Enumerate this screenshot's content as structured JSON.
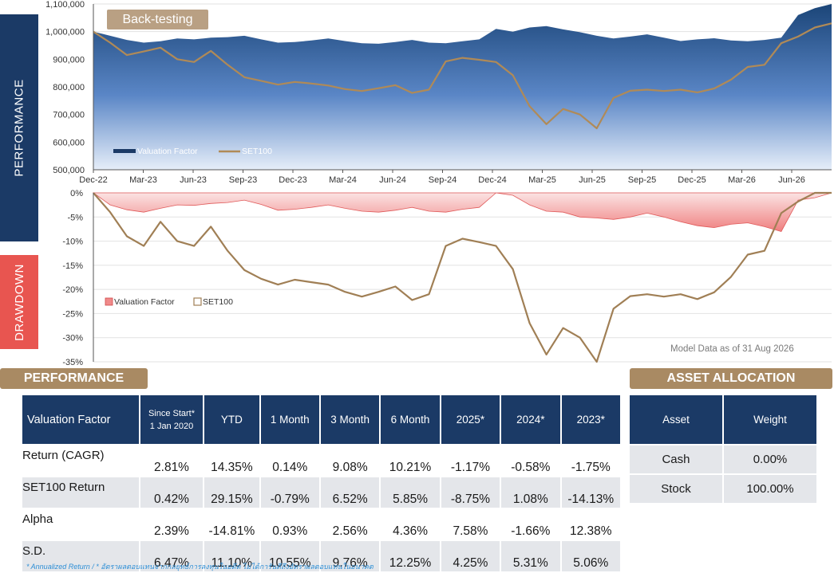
{
  "labels": {
    "performance_sidebar": "PERFORMANCE",
    "drawdown_sidebar": "DRAWDOWN",
    "backtest_badge": "Back-testing",
    "model_note": "Model Data as of 31 Aug 2026",
    "perf_header": "PERFORMANCE",
    "alloc_header": "ASSET ALLOCATION",
    "footnote": "* Annualized Return  /  * อัตราผลตอบแทนจากกลยุทธ์การลงทุนในอดีต ไม่ได้การันตีถึงอัตราผลตอบแทนในอนาคต"
  },
  "colors": {
    "navy": "#1b3a66",
    "brown_header": "#a98a63",
    "drawdown_sidebar": "#e85550",
    "set100_line": "#b08a57",
    "vf_area_top": "#1d4a7e",
    "vf_area_bottom": "#dfe9f7",
    "dd_area": "#f08a8a",
    "positive": "#1f9e3a",
    "negative": "#e0201c"
  },
  "chart_data": [
    {
      "type": "area",
      "title": "",
      "x_ticks": [
        "Dec-22",
        "Mar-23",
        "Jun-23",
        "Sep-23",
        "Dec-23",
        "Mar-24",
        "Jun-24",
        "Sep-24",
        "Dec-24",
        "Mar-25",
        "Jun-25",
        "Sep-25",
        "Dec-25",
        "Mar-26",
        "Jun-26"
      ],
      "y_ticks": [
        "1,100,000",
        "1,000,000",
        "900,000",
        "800,000",
        "700,000",
        "600,000",
        "500,000"
      ],
      "ylim": [
        500000,
        1100000
      ],
      "legend_position": "bottom-left",
      "series": [
        {
          "name": "Valuation Factor",
          "style": "area",
          "x": [
            0,
            1,
            2,
            3,
            4,
            5,
            6,
            7,
            8,
            9,
            10,
            11,
            12,
            13,
            14,
            15,
            16,
            17,
            18,
            19,
            20,
            21,
            22,
            23,
            24,
            25,
            26,
            27,
            28,
            29,
            30,
            31,
            32,
            33,
            34,
            35,
            36,
            37,
            38,
            39,
            40,
            41,
            42,
            43,
            44
          ],
          "values": [
            1000000,
            985000,
            970000,
            960000,
            965000,
            975000,
            972000,
            978000,
            980000,
            985000,
            972000,
            960000,
            962000,
            968000,
            975000,
            966000,
            958000,
            956000,
            962000,
            970000,
            960000,
            958000,
            965000,
            972000,
            1010000,
            1000000,
            1015000,
            1020000,
            1008000,
            998000,
            985000,
            975000,
            982000,
            990000,
            978000,
            966000,
            972000,
            976000,
            968000,
            965000,
            970000,
            978000,
            1060000,
            1085000,
            1100000
          ]
        },
        {
          "name": "SET100",
          "style": "line",
          "x": [
            0,
            1,
            2,
            3,
            4,
            5,
            6,
            7,
            8,
            9,
            10,
            11,
            12,
            13,
            14,
            15,
            16,
            17,
            18,
            19,
            20,
            21,
            22,
            23,
            24,
            25,
            26,
            27,
            28,
            29,
            30,
            31,
            32,
            33,
            34,
            35,
            36,
            37,
            38,
            39,
            40,
            41,
            42,
            43,
            44
          ],
          "values": [
            1000000,
            960000,
            915000,
            928000,
            942000,
            900000,
            890000,
            930000,
            880000,
            835000,
            822000,
            808000,
            818000,
            812000,
            805000,
            792000,
            785000,
            795000,
            806000,
            778000,
            790000,
            892000,
            905000,
            898000,
            890000,
            842000,
            730000,
            665000,
            720000,
            700000,
            650000,
            760000,
            786000,
            790000,
            785000,
            790000,
            780000,
            794000,
            826000,
            872000,
            880000,
            958000,
            982000,
            1015000,
            1030000
          ]
        }
      ]
    },
    {
      "type": "area",
      "title": "",
      "y_ticks": [
        "0%",
        "-5%",
        "-10%",
        "-15%",
        "-20%",
        "-25%",
        "-30%",
        "-35%"
      ],
      "ylim": [
        -35,
        0
      ],
      "legend_position": "bottom-left",
      "series": [
        {
          "name": "Valuation Factor",
          "style": "area",
          "x": [
            0,
            1,
            2,
            3,
            4,
            5,
            6,
            7,
            8,
            9,
            10,
            11,
            12,
            13,
            14,
            15,
            16,
            17,
            18,
            19,
            20,
            21,
            22,
            23,
            24,
            25,
            26,
            27,
            28,
            29,
            30,
            31,
            32,
            33,
            34,
            35,
            36,
            37,
            38,
            39,
            40,
            41,
            42,
            43,
            44
          ],
          "values": [
            0,
            -2.5,
            -3.5,
            -4.0,
            -3.2,
            -2.5,
            -2.6,
            -2.2,
            -2.0,
            -1.5,
            -2.4,
            -3.6,
            -3.4,
            -3.0,
            -2.5,
            -3.2,
            -3.8,
            -4.0,
            -3.6,
            -3.0,
            -3.8,
            -4.0,
            -3.4,
            -3.0,
            0,
            -0.5,
            -2.5,
            -3.8,
            -4.0,
            -5.0,
            -5.2,
            -5.5,
            -5.0,
            -4.2,
            -5.0,
            -6.0,
            -6.8,
            -7.2,
            -6.5,
            -6.2,
            -7.0,
            -8.0,
            -1.5,
            -1.0,
            0
          ]
        },
        {
          "name": "SET100",
          "style": "line",
          "x": [
            0,
            1,
            2,
            3,
            4,
            5,
            6,
            7,
            8,
            9,
            10,
            11,
            12,
            13,
            14,
            15,
            16,
            17,
            18,
            19,
            20,
            21,
            22,
            23,
            24,
            25,
            26,
            27,
            28,
            29,
            30,
            31,
            32,
            33,
            34,
            35,
            36,
            37,
            38,
            39,
            40,
            41,
            42,
            43,
            44
          ],
          "values": [
            0,
            -4,
            -9,
            -11,
            -6,
            -10,
            -11,
            -7,
            -12,
            -16,
            -17.8,
            -19,
            -18,
            -18.5,
            -19,
            -20.5,
            -21.5,
            -20.5,
            -19.4,
            -22.2,
            -21,
            -11,
            -9.5,
            -10.2,
            -11,
            -15.8,
            -27,
            -33.5,
            -28,
            -30,
            -35,
            -24,
            -21.4,
            -21,
            -21.5,
            -21,
            -22,
            -20.6,
            -17.4,
            -12.8,
            -12,
            -4.2,
            -1.8,
            0,
            0
          ]
        }
      ]
    }
  ],
  "performance_table": {
    "columns": [
      "Valuation Factor",
      "Since Start*",
      "1 Jan 2020",
      "YTD",
      "1 Month",
      "3 Month",
      "6 Month",
      "2025*",
      "2024*",
      "2023*"
    ],
    "rows": [
      {
        "label": "Return (CAGR)",
        "values": [
          "2.81%",
          "14.35%",
          "0.14%",
          "9.08%",
          "10.21%",
          "-1.17%",
          "-0.58%",
          "-1.75%"
        ]
      },
      {
        "label": "SET100 Return",
        "values": [
          "0.42%",
          "29.15%",
          "-0.79%",
          "6.52%",
          "5.85%",
          "-8.75%",
          "1.08%",
          "-14.13%"
        ]
      },
      {
        "label": "Alpha",
        "values": [
          "2.39%",
          "-14.81%",
          "0.93%",
          "2.56%",
          "4.36%",
          "7.58%",
          "-1.66%",
          "12.38%"
        ]
      },
      {
        "label": "S.D.",
        "values": [
          "6.47%",
          "11.10%",
          "10.55%",
          "9.76%",
          "12.25%",
          "4.25%",
          "5.31%",
          "5.06%"
        ]
      }
    ]
  },
  "allocation_table": {
    "columns": [
      "Asset",
      "Weight"
    ],
    "rows": [
      {
        "asset": "Cash",
        "weight": "0.00%"
      },
      {
        "asset": "Stock",
        "weight": "100.00%"
      }
    ]
  }
}
